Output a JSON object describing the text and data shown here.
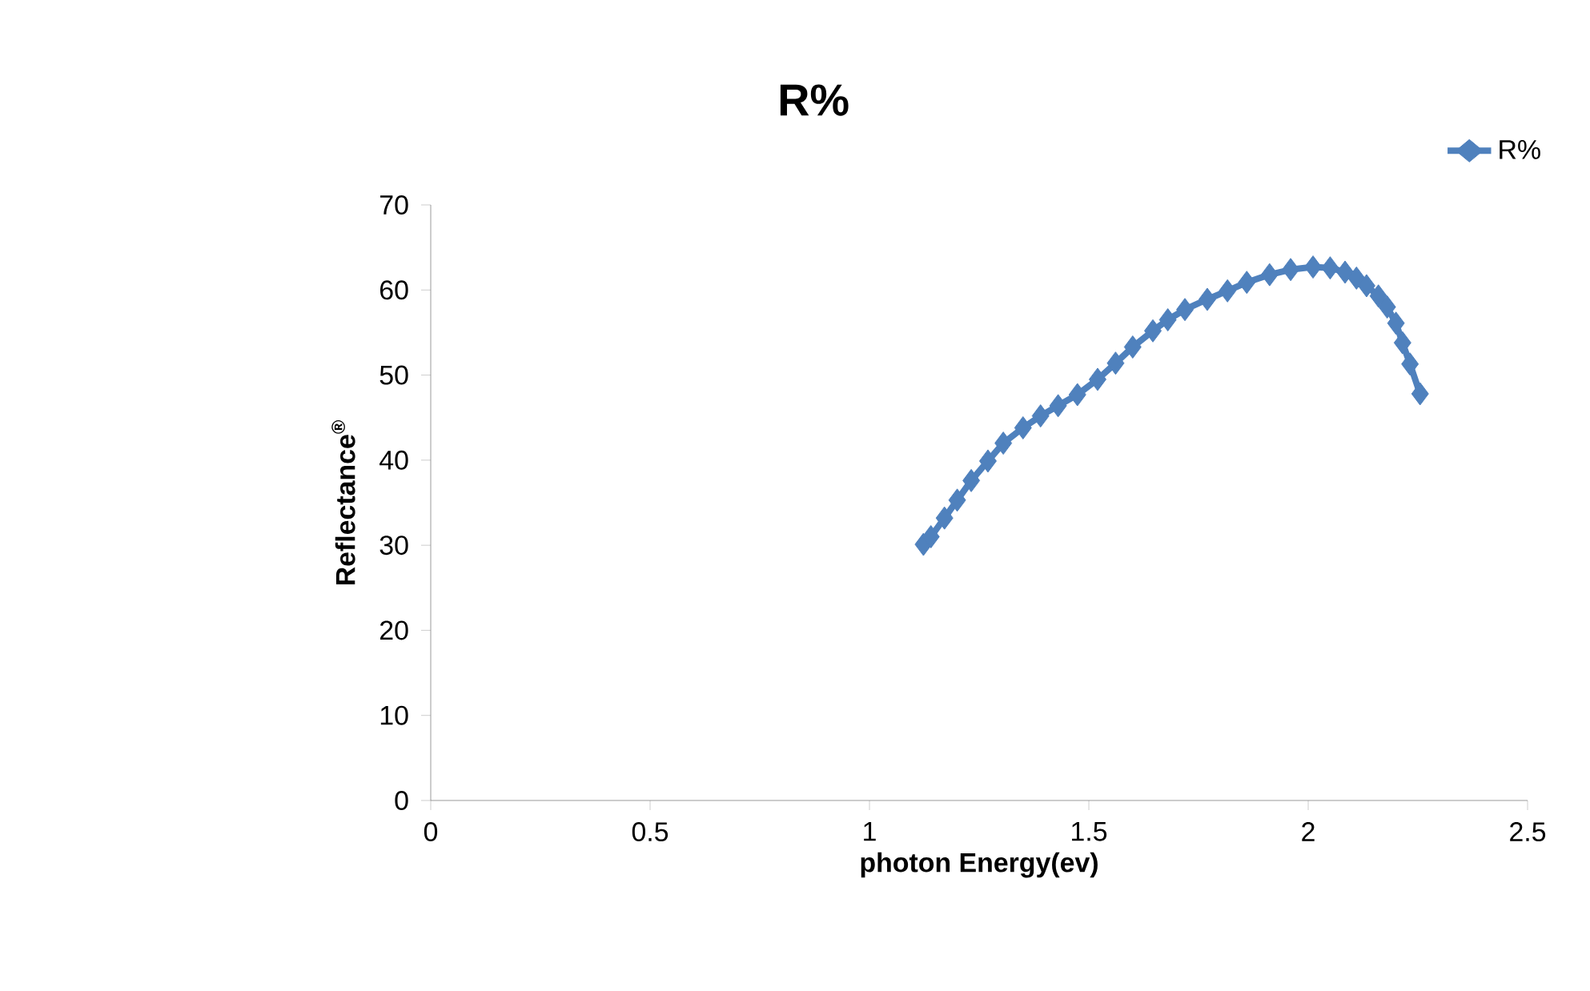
{
  "chart_data": {
    "type": "line",
    "title": "R%",
    "xlabel": "photon Energy(ev)",
    "ylabel": "Reflectance$^{®}$",
    "series": [
      {
        "name": "R%",
        "color": "#4f81bd",
        "x": [
          1.123,
          1.14,
          1.171,
          1.2,
          1.232,
          1.27,
          1.305,
          1.35,
          1.39,
          1.43,
          1.474,
          1.52,
          1.561,
          1.6,
          1.646,
          1.68,
          1.719,
          1.77,
          1.816,
          1.86,
          1.912,
          1.96,
          2.011,
          2.05,
          2.084,
          2.11,
          2.133,
          2.16,
          2.18,
          2.2,
          2.215,
          2.232,
          2.255
        ],
        "values": [
          30.1,
          31.0,
          33.2,
          35.3,
          37.6,
          39.9,
          42.0,
          43.8,
          45.2,
          46.4,
          47.7,
          49.5,
          51.4,
          53.3,
          55.2,
          56.5,
          57.7,
          58.9,
          59.9,
          60.9,
          61.8,
          62.4,
          62.7,
          62.6,
          62.1,
          61.4,
          60.5,
          59.3,
          58.0,
          56.1,
          53.8,
          51.3,
          47.8
        ]
      }
    ],
    "xlim": [
      0,
      2.5
    ],
    "ylim": [
      0,
      70
    ],
    "xticks": [
      0,
      0.5,
      1,
      1.5,
      2,
      2.5
    ],
    "yticks": [
      0,
      10,
      20,
      30,
      40,
      50,
      60,
      70
    ],
    "marker": "diamond",
    "line_style": "solid",
    "legend": "top right",
    "grid": false
  }
}
